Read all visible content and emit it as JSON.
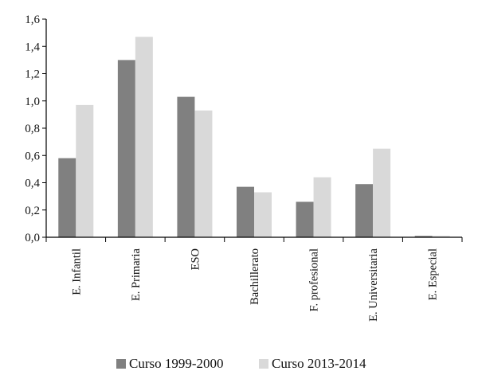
{
  "chart_data": {
    "type": "bar",
    "categories": [
      "E. Infantil",
      "E. Primaria",
      "ESO",
      "Bachillerato",
      "F. profesional",
      "E. Universitaria",
      "E. Especial"
    ],
    "series": [
      {
        "name": "Curso 1999-2000",
        "values": [
          0.58,
          1.3,
          1.03,
          0.37,
          0.26,
          0.39,
          0.01
        ],
        "color": "#808080"
      },
      {
        "name": "Curso 2013-2014",
        "values": [
          0.97,
          1.47,
          0.93,
          0.33,
          0.44,
          0.65,
          0.01
        ],
        "color": "#d9d9d9"
      }
    ],
    "y_ticks": [
      "0,0",
      "0,2",
      "0,4",
      "0,6",
      "0,8",
      "1,0",
      "1,2",
      "1,4",
      "1,6"
    ],
    "ylim": [
      0,
      1.6
    ],
    "grid": false,
    "legend_position": "bottom",
    "title": "",
    "xlabel": "",
    "ylabel": ""
  }
}
